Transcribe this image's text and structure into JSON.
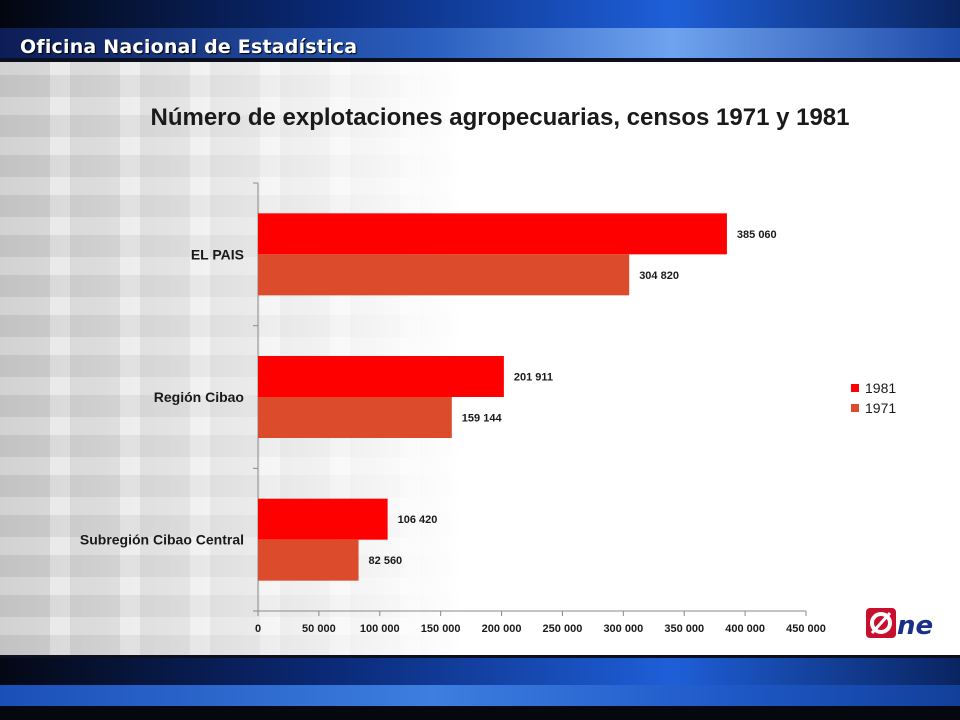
{
  "header": {
    "org_name": "Oficina Nacional de Estadística"
  },
  "colors": {
    "series_1981": "#ff0000",
    "series_1971": "#dc4b2b"
  },
  "chart_data": {
    "type": "bar",
    "orientation": "horizontal",
    "title": "Número de explotaciones agropecuarias, censos 1971 y 1981",
    "xlabel": "",
    "ylabel": "",
    "categories": [
      "EL PAIS",
      "Región Cibao",
      "Subregión Cibao Central"
    ],
    "series": [
      {
        "name": "1981",
        "values": [
          385060,
          201911,
          106420
        ],
        "labels": [
          "385 060",
          "201 911",
          "106 420"
        ]
      },
      {
        "name": "1971",
        "values": [
          304820,
          159144,
          82560
        ],
        "labels": [
          "304 820",
          "159 144",
          "82 560"
        ]
      }
    ],
    "xlim": [
      0,
      450000
    ],
    "xticks": [
      0,
      50000,
      100000,
      150000,
      200000,
      250000,
      300000,
      350000,
      400000,
      450000
    ],
    "xtick_labels": [
      "0",
      "50 000",
      "100 000",
      "150 000",
      "200 000",
      "250 000",
      "300 000",
      "350 000",
      "400 000",
      "450 000"
    ],
    "grid": false,
    "legend_position": "right"
  },
  "logo": {
    "icon": "one-logo",
    "text": "One"
  }
}
